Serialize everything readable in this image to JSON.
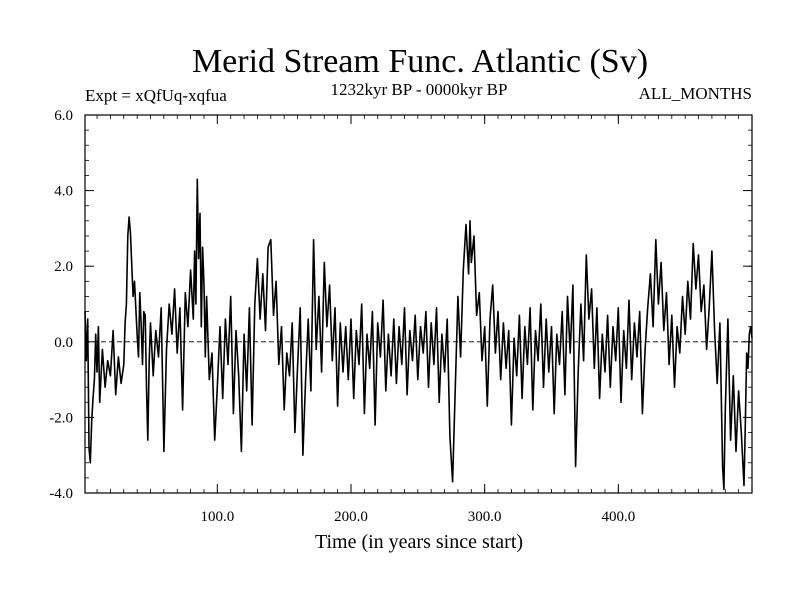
{
  "chart_data": {
    "type": "line",
    "title": "Merid Stream Func. Atlantic (Sv)",
    "left_label": "Expt = xQfUq-xqfua",
    "center_label": "1232kyr BP - 0000kyr BP",
    "right_label": "ALL_MONTHS",
    "xlabel": "Time (in years since start)",
    "ylabel": "",
    "xlim": [
      1,
      500
    ],
    "ylim": [
      -4.0,
      6.0
    ],
    "x_ticks": [
      100,
      200,
      300,
      400
    ],
    "x_tick_labels": [
      "100.0",
      "200.0",
      "300.0",
      "400.0"
    ],
    "y_ticks": [
      -4,
      -2,
      0,
      2,
      4,
      6
    ],
    "y_tick_labels": [
      "-4.0",
      "-2.0",
      "0.0",
      "2.0",
      "4.0",
      "6.0"
    ],
    "zero_line": true,
    "colors": {
      "line": "#000000",
      "axes": "#000000"
    },
    "keypoints": [
      [
        1,
        0.8
      ],
      [
        2,
        -0.5
      ],
      [
        3,
        0.6
      ],
      [
        4,
        -2.8
      ],
      [
        5,
        -3.2
      ],
      [
        6,
        -2.1
      ],
      [
        7,
        -1.5
      ],
      [
        8,
        -1.0
      ],
      [
        9,
        0.2
      ],
      [
        10,
        -0.8
      ],
      [
        11,
        0.4
      ],
      [
        12,
        -1.6
      ],
      [
        14,
        -0.2
      ],
      [
        16,
        -1.2
      ],
      [
        18,
        -0.5
      ],
      [
        20,
        -0.9
      ],
      [
        22,
        0.3
      ],
      [
        24,
        -1.4
      ],
      [
        26,
        -0.4
      ],
      [
        28,
        -1.1
      ],
      [
        30,
        -0.6
      ],
      [
        31,
        0.5
      ],
      [
        32,
        1.0
      ],
      [
        33,
        2.8
      ],
      [
        34,
        3.3
      ],
      [
        35,
        2.9
      ],
      [
        36,
        2.0
      ],
      [
        37,
        1.2
      ],
      [
        38,
        1.6
      ],
      [
        39,
        0.9
      ],
      [
        40,
        0.2
      ],
      [
        41,
        -0.4
      ],
      [
        42,
        1.3
      ],
      [
        43,
        0.5
      ],
      [
        44,
        -0.6
      ],
      [
        45,
        0.8
      ],
      [
        46,
        0.7
      ],
      [
        47,
        -1.2
      ],
      [
        48,
        -2.6
      ],
      [
        49,
        -0.5
      ],
      [
        50,
        0.5
      ],
      [
        52,
        -0.9
      ],
      [
        54,
        0.3
      ],
      [
        56,
        -0.4
      ],
      [
        58,
        0.9
      ],
      [
        60,
        -2.9
      ],
      [
        62,
        -0.2
      ],
      [
        64,
        1.0
      ],
      [
        66,
        0.2
      ],
      [
        68,
        1.4
      ],
      [
        70,
        -0.3
      ],
      [
        72,
        0.9
      ],
      [
        74,
        -1.8
      ],
      [
        76,
        1.3
      ],
      [
        78,
        0.4
      ],
      [
        80,
        1.9
      ],
      [
        82,
        0.6
      ],
      [
        83,
        2.4
      ],
      [
        84,
        1.0
      ],
      [
        85,
        4.3
      ],
      [
        86,
        2.2
      ],
      [
        87,
        3.4
      ],
      [
        88,
        0.4
      ],
      [
        89,
        2.5
      ],
      [
        90,
        1.5
      ],
      [
        91,
        -0.4
      ],
      [
        92,
        1.2
      ],
      [
        94,
        -1.0
      ],
      [
        96,
        -0.3
      ],
      [
        98,
        -2.6
      ],
      [
        100,
        -1.2
      ],
      [
        102,
        0.4
      ],
      [
        104,
        -1.5
      ],
      [
        106,
        0.6
      ],
      [
        108,
        -0.6
      ],
      [
        110,
        1.2
      ],
      [
        112,
        -1.9
      ],
      [
        114,
        0.3
      ],
      [
        116,
        -0.9
      ],
      [
        118,
        -2.9
      ],
      [
        120,
        0.2
      ],
      [
        122,
        -1.3
      ],
      [
        124,
        0.9
      ],
      [
        126,
        -2.2
      ],
      [
        128,
        1.0
      ],
      [
        130,
        2.2
      ],
      [
        132,
        0.6
      ],
      [
        134,
        1.8
      ],
      [
        136,
        0.3
      ],
      [
        138,
        2.5
      ],
      [
        140,
        2.7
      ],
      [
        142,
        0.7
      ],
      [
        144,
        1.6
      ],
      [
        146,
        -0.6
      ],
      [
        148,
        0.4
      ],
      [
        150,
        -1.8
      ],
      [
        152,
        -0.3
      ],
      [
        154,
        -0.9
      ],
      [
        156,
        0.5
      ],
      [
        158,
        -2.4
      ],
      [
        160,
        -0.7
      ],
      [
        162,
        0.9
      ],
      [
        164,
        -3.0
      ],
      [
        166,
        -1.0
      ],
      [
        168,
        0.6
      ],
      [
        170,
        -1.3
      ],
      [
        172,
        2.7
      ],
      [
        174,
        -0.2
      ],
      [
        176,
        1.2
      ],
      [
        178,
        -0.8
      ],
      [
        180,
        2.1
      ],
      [
        182,
        0.4
      ],
      [
        184,
        1.5
      ],
      [
        186,
        -0.5
      ],
      [
        188,
        0.9
      ],
      [
        190,
        -1.7
      ],
      [
        192,
        0.5
      ],
      [
        194,
        -0.8
      ],
      [
        196,
        0.4
      ],
      [
        198,
        -1.0
      ],
      [
        200,
        0.6
      ],
      [
        202,
        -1.5
      ],
      [
        204,
        0.3
      ],
      [
        206,
        -0.6
      ],
      [
        208,
        1.0
      ],
      [
        210,
        -1.9
      ],
      [
        212,
        0.2
      ],
      [
        214,
        -0.7
      ],
      [
        216,
        0.8
      ],
      [
        218,
        -2.2
      ],
      [
        220,
        0.5
      ],
      [
        222,
        -0.4
      ],
      [
        224,
        1.1
      ],
      [
        226,
        -1.3
      ],
      [
        228,
        0.2
      ],
      [
        230,
        -0.9
      ],
      [
        232,
        0.6
      ],
      [
        234,
        -1.1
      ],
      [
        236,
        0.4
      ],
      [
        238,
        -0.6
      ],
      [
        240,
        0.9
      ],
      [
        242,
        -1.4
      ],
      [
        244,
        0.3
      ],
      [
        246,
        -0.5
      ],
      [
        248,
        0.7
      ],
      [
        250,
        -1.0
      ],
      [
        252,
        0.4
      ],
      [
        254,
        -0.3
      ],
      [
        256,
        0.8
      ],
      [
        258,
        -1.2
      ],
      [
        260,
        0.5
      ],
      [
        262,
        -0.6
      ],
      [
        264,
        0.9
      ],
      [
        266,
        -1.6
      ],
      [
        268,
        0.2
      ],
      [
        270,
        -0.8
      ],
      [
        272,
        0.6
      ],
      [
        274,
        -2.5
      ],
      [
        276,
        -3.7
      ],
      [
        278,
        -1.2
      ],
      [
        280,
        1.2
      ],
      [
        282,
        -0.4
      ],
      [
        284,
        1.9
      ],
      [
        286,
        3.1
      ],
      [
        288,
        1.8
      ],
      [
        289,
        3.2
      ],
      [
        290,
        2.1
      ],
      [
        292,
        2.8
      ],
      [
        294,
        0.7
      ],
      [
        296,
        1.3
      ],
      [
        298,
        -0.5
      ],
      [
        300,
        0.4
      ],
      [
        302,
        -1.7
      ],
      [
        304,
        0.6
      ],
      [
        306,
        1.5
      ],
      [
        308,
        -0.3
      ],
      [
        310,
        0.8
      ],
      [
        312,
        -1.0
      ],
      [
        314,
        0.5
      ],
      [
        316,
        -0.7
      ],
      [
        318,
        0.3
      ],
      [
        320,
        -2.2
      ],
      [
        322,
        0.1
      ],
      [
        324,
        -0.9
      ],
      [
        326,
        0.7
      ],
      [
        328,
        -1.5
      ],
      [
        330,
        0.4
      ],
      [
        332,
        -0.6
      ],
      [
        334,
        0.9
      ],
      [
        336,
        -1.8
      ],
      [
        338,
        0.3
      ],
      [
        340,
        -0.5
      ],
      [
        342,
        1.0
      ],
      [
        344,
        -1.2
      ],
      [
        346,
        0.6
      ],
      [
        348,
        -0.8
      ],
      [
        350,
        0.4
      ],
      [
        352,
        -1.9
      ],
      [
        354,
        0.2
      ],
      [
        356,
        -0.6
      ],
      [
        358,
        0.8
      ],
      [
        360,
        -1.4
      ],
      [
        362,
        1.2
      ],
      [
        364,
        -0.3
      ],
      [
        366,
        1.5
      ],
      [
        368,
        -3.3
      ],
      [
        370,
        -0.8
      ],
      [
        372,
        1.0
      ],
      [
        374,
        -0.5
      ],
      [
        376,
        2.3
      ],
      [
        378,
        0.6
      ],
      [
        380,
        1.4
      ],
      [
        382,
        -0.7
      ],
      [
        384,
        0.9
      ],
      [
        386,
        -1.5
      ],
      [
        388,
        0.2
      ],
      [
        390,
        -0.8
      ],
      [
        392,
        0.7
      ],
      [
        394,
        -1.2
      ],
      [
        396,
        0.4
      ],
      [
        398,
        -0.5
      ],
      [
        400,
        0.9
      ],
      [
        402,
        -1.6
      ],
      [
        404,
        0.3
      ],
      [
        406,
        -0.7
      ],
      [
        408,
        1.1
      ],
      [
        410,
        -1.0
      ],
      [
        412,
        0.5
      ],
      [
        414,
        -0.4
      ],
      [
        416,
        0.8
      ],
      [
        418,
        -1.9
      ],
      [
        420,
        -0.2
      ],
      [
        422,
        0.9
      ],
      [
        424,
        1.8
      ],
      [
        426,
        0.4
      ],
      [
        428,
        2.7
      ],
      [
        430,
        1.0
      ],
      [
        432,
        2.1
      ],
      [
        434,
        0.3
      ],
      [
        436,
        1.3
      ],
      [
        438,
        -0.6
      ],
      [
        440,
        0.7
      ],
      [
        442,
        -1.2
      ],
      [
        444,
        0.4
      ],
      [
        446,
        -0.3
      ],
      [
        448,
        1.2
      ],
      [
        450,
        0.2
      ],
      [
        452,
        1.6
      ],
      [
        454,
        0.6
      ],
      [
        456,
        2.6
      ],
      [
        458,
        1.4
      ],
      [
        460,
        2.3
      ],
      [
        462,
        0.8
      ],
      [
        464,
        1.5
      ],
      [
        466,
        -0.2
      ],
      [
        468,
        0.9
      ],
      [
        470,
        2.4
      ],
      [
        472,
        0.3
      ],
      [
        474,
        -1.1
      ],
      [
        476,
        0.5
      ],
      [
        478,
        -3.3
      ],
      [
        479,
        -3.9
      ],
      [
        480,
        -1.8
      ],
      [
        482,
        0.6
      ],
      [
        484,
        -2.6
      ],
      [
        486,
        -0.9
      ],
      [
        488,
        -2.9
      ],
      [
        490,
        -1.3
      ],
      [
        492,
        -2.4
      ],
      [
        494,
        -3.8
      ],
      [
        495,
        -2.2
      ],
      [
        496,
        -0.3
      ],
      [
        497,
        -0.7
      ],
      [
        498,
        0.2
      ],
      [
        499,
        0.4
      ],
      [
        500,
        0.1
      ]
    ]
  }
}
